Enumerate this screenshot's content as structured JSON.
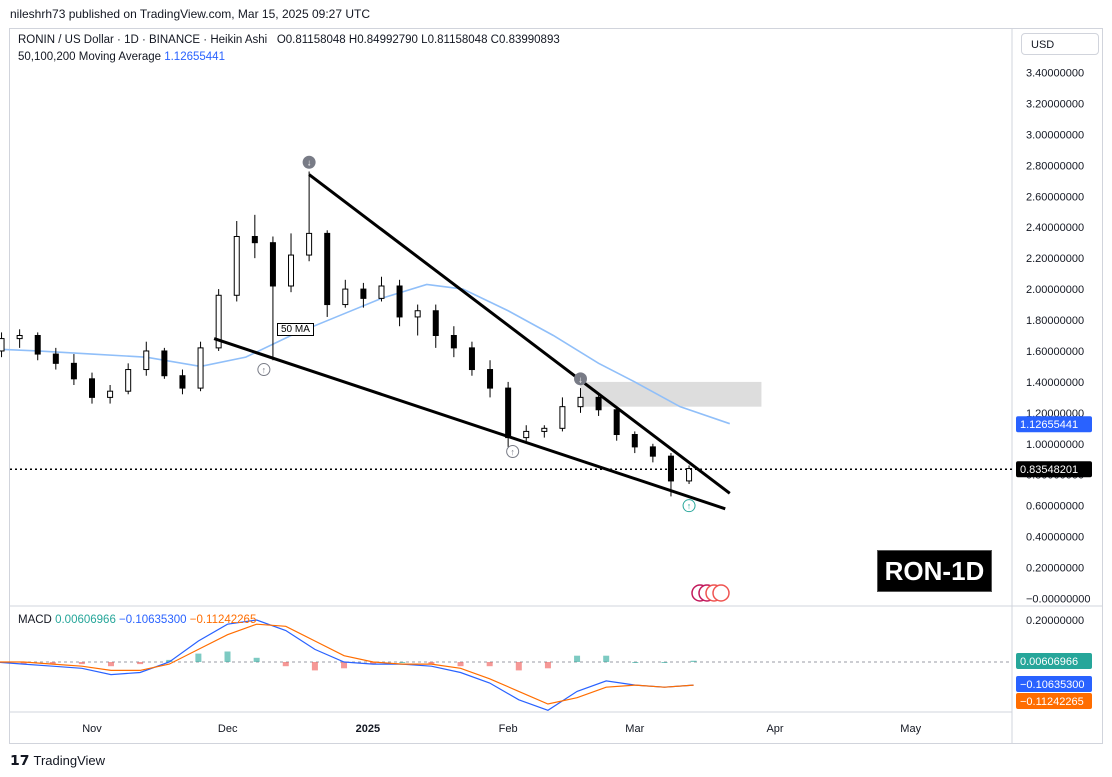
{
  "publisher_line": "nileshrh73 published on TradingView.com, Mar 15, 2025 09:27 UTC",
  "legend": {
    "symbol_line": "RONIN / US Dollar · 1D · BINANCE · Heikin Ashi",
    "open_label": "O",
    "open": "0.81158048",
    "high_label": "H",
    "high": "0.84992790",
    "low_label": "L",
    "low": "0.81158048",
    "close_label": "C",
    "close": "0.83990893",
    "ma_label": "50,100,200 Moving Average",
    "ma_value": "1.12655441"
  },
  "currency_button": "USD",
  "badge_text": "RON-1D",
  "ma_tag": "50 MA",
  "watermark": "TradingView",
  "colors": {
    "up": "#26a69a",
    "down": "#ef5350",
    "candle": "#000000",
    "ma": "#90bff9",
    "macd_line": "#2962ff",
    "signal_line": "#ff6d00",
    "hist_up": "#26a69a",
    "hist_down": "#ef5350",
    "zone": "#d9d9d9",
    "price_tag": "#000000",
    "ma_tag_bg": "#2962ff",
    "macd_tag_bg": "#26a69a"
  },
  "price_tags": {
    "ma": "1.12655441",
    "last": "0.83548201"
  },
  "macd": {
    "label": "MACD",
    "hist": "0.00606966",
    "macd": "−0.10635300",
    "signal": "−0.11242265",
    "axis_labels": [
      "0.20000000"
    ]
  },
  "chart_data": {
    "type": "candlestick",
    "title": "RONIN / US Dollar · 1D · BINANCE · Heikin Ashi",
    "ylim": [
      0,
      3.5
    ],
    "y_ticks": [
      "3.40000000",
      "3.20000000",
      "3.00000000",
      "2.80000000",
      "2.60000000",
      "2.40000000",
      "2.20000000",
      "2.00000000",
      "1.80000000",
      "1.60000000",
      "1.40000000",
      "1.20000000",
      "1.00000000",
      "0.80000000",
      "0.60000000",
      "0.40000000",
      "0.20000000",
      "−0.00000000"
    ],
    "x_ticks": [
      "Nov",
      "Dec",
      "2025",
      "Feb",
      "Mar",
      "Apr",
      "May"
    ],
    "candles": [
      {
        "date": "2024-10-04",
        "o": 1.64,
        "h": 1.7,
        "l": 1.58,
        "c": 1.62
      },
      {
        "date": "2024-10-08",
        "o": 1.62,
        "h": 1.68,
        "l": 1.56,
        "c": 1.6
      },
      {
        "date": "2024-10-12",
        "o": 1.6,
        "h": 1.72,
        "l": 1.56,
        "c": 1.68
      },
      {
        "date": "2024-10-16",
        "o": 1.68,
        "h": 1.74,
        "l": 1.62,
        "c": 1.7
      },
      {
        "date": "2024-10-20",
        "o": 1.7,
        "h": 1.72,
        "l": 1.54,
        "c": 1.58
      },
      {
        "date": "2024-10-24",
        "o": 1.58,
        "h": 1.62,
        "l": 1.48,
        "c": 1.52
      },
      {
        "date": "2024-10-28",
        "o": 1.52,
        "h": 1.58,
        "l": 1.38,
        "c": 1.42
      },
      {
        "date": "2024-11-01",
        "o": 1.42,
        "h": 1.46,
        "l": 1.26,
        "c": 1.3
      },
      {
        "date": "2024-11-05",
        "o": 1.3,
        "h": 1.38,
        "l": 1.26,
        "c": 1.34
      },
      {
        "date": "2024-11-09",
        "o": 1.34,
        "h": 1.52,
        "l": 1.32,
        "c": 1.48
      },
      {
        "date": "2024-11-13",
        "o": 1.48,
        "h": 1.66,
        "l": 1.44,
        "c": 1.6
      },
      {
        "date": "2024-11-17",
        "o": 1.6,
        "h": 1.62,
        "l": 1.42,
        "c": 1.44
      },
      {
        "date": "2024-11-21",
        "o": 1.44,
        "h": 1.48,
        "l": 1.32,
        "c": 1.36
      },
      {
        "date": "2024-11-25",
        "o": 1.36,
        "h": 1.66,
        "l": 1.34,
        "c": 1.62
      },
      {
        "date": "2024-11-29",
        "o": 1.62,
        "h": 2.0,
        "l": 1.6,
        "c": 1.96
      },
      {
        "date": "2024-12-03",
        "o": 1.96,
        "h": 2.44,
        "l": 1.92,
        "c": 2.34
      },
      {
        "date": "2024-12-07",
        "o": 2.34,
        "h": 2.48,
        "l": 2.2,
        "c": 2.3
      },
      {
        "date": "2024-12-11",
        "o": 2.3,
        "h": 2.34,
        "l": 1.54,
        "c": 2.02
      },
      {
        "date": "2024-12-15",
        "o": 2.02,
        "h": 2.36,
        "l": 1.98,
        "c": 2.22
      },
      {
        "date": "2024-12-19",
        "o": 2.22,
        "h": 2.76,
        "l": 2.18,
        "c": 2.36
      },
      {
        "date": "2024-12-23",
        "o": 2.36,
        "h": 2.38,
        "l": 1.82,
        "c": 1.9
      },
      {
        "date": "2024-12-27",
        "o": 1.9,
        "h": 2.06,
        "l": 1.88,
        "c": 2.0
      },
      {
        "date": "2024-12-31",
        "o": 2.0,
        "h": 2.04,
        "l": 1.88,
        "c": 1.94
      },
      {
        "date": "2025-01-04",
        "o": 1.94,
        "h": 2.08,
        "l": 1.92,
        "c": 2.02
      },
      {
        "date": "2025-01-08",
        "o": 2.02,
        "h": 2.06,
        "l": 1.76,
        "c": 1.82
      },
      {
        "date": "2025-01-12",
        "o": 1.82,
        "h": 1.9,
        "l": 1.7,
        "c": 1.86
      },
      {
        "date": "2025-01-16",
        "o": 1.86,
        "h": 1.9,
        "l": 1.62,
        "c": 1.7
      },
      {
        "date": "2025-01-20",
        "o": 1.7,
        "h": 1.76,
        "l": 1.56,
        "c": 1.62
      },
      {
        "date": "2025-01-24",
        "o": 1.62,
        "h": 1.66,
        "l": 1.44,
        "c": 1.48
      },
      {
        "date": "2025-01-28",
        "o": 1.48,
        "h": 1.54,
        "l": 1.3,
        "c": 1.36
      },
      {
        "date": "2025-02-01",
        "o": 1.36,
        "h": 1.4,
        "l": 0.98,
        "c": 1.04
      },
      {
        "date": "2025-02-05",
        "o": 1.04,
        "h": 1.12,
        "l": 1.0,
        "c": 1.08
      },
      {
        "date": "2025-02-09",
        "o": 1.08,
        "h": 1.12,
        "l": 1.04,
        "c": 1.1
      },
      {
        "date": "2025-02-13",
        "o": 1.1,
        "h": 1.3,
        "l": 1.08,
        "c": 1.24
      },
      {
        "date": "2025-02-17",
        "o": 1.24,
        "h": 1.36,
        "l": 1.2,
        "c": 1.3
      },
      {
        "date": "2025-02-21",
        "o": 1.3,
        "h": 1.32,
        "l": 1.18,
        "c": 1.22
      },
      {
        "date": "2025-02-25",
        "o": 1.22,
        "h": 1.24,
        "l": 1.02,
        "c": 1.06
      },
      {
        "date": "2025-03-01",
        "o": 1.06,
        "h": 1.08,
        "l": 0.94,
        "c": 0.98
      },
      {
        "date": "2025-03-05",
        "o": 0.98,
        "h": 1.0,
        "l": 0.88,
        "c": 0.92
      },
      {
        "date": "2025-03-09",
        "o": 0.92,
        "h": 0.94,
        "l": 0.66,
        "c": 0.76
      },
      {
        "date": "2025-03-13",
        "o": 0.76,
        "h": 0.86,
        "l": 0.74,
        "c": 0.84
      }
    ],
    "ma50": [
      {
        "date": "2024-10-04",
        "v": 1.62
      },
      {
        "date": "2024-10-20",
        "v": 1.6
      },
      {
        "date": "2024-11-01",
        "v": 1.58
      },
      {
        "date": "2024-11-13",
        "v": 1.56
      },
      {
        "date": "2024-11-25",
        "v": 1.5
      },
      {
        "date": "2024-12-05",
        "v": 1.56
      },
      {
        "date": "2024-12-15",
        "v": 1.7
      },
      {
        "date": "2024-12-25",
        "v": 1.82
      },
      {
        "date": "2025-01-04",
        "v": 1.94
      },
      {
        "date": "2025-01-14",
        "v": 2.03
      },
      {
        "date": "2025-01-22",
        "v": 2.0
      },
      {
        "date": "2025-02-01",
        "v": 1.86
      },
      {
        "date": "2025-02-11",
        "v": 1.7
      },
      {
        "date": "2025-02-21",
        "v": 1.52
      },
      {
        "date": "2025-03-01",
        "v": 1.4
      },
      {
        "date": "2025-03-11",
        "v": 1.24
      },
      {
        "date": "2025-03-22",
        "v": 1.13
      }
    ],
    "trendlines": [
      {
        "from": {
          "date": "2024-12-19",
          "v": 2.74
        },
        "to": {
          "date": "2025-03-22",
          "v": 0.68
        }
      },
      {
        "from": {
          "date": "2024-11-28",
          "v": 1.68
        },
        "to": {
          "date": "2025-03-21",
          "v": 0.58
        }
      }
    ],
    "zone": {
      "from": "2025-02-17",
      "to": "2025-03-29",
      "low": 1.24,
      "high": 1.4
    },
    "markers": [
      {
        "type": "down",
        "date": "2024-12-19",
        "v": 2.82
      },
      {
        "type": "up",
        "date": "2024-12-09",
        "v": 1.48
      },
      {
        "type": "up",
        "date": "2025-02-02",
        "v": 0.95
      },
      {
        "type": "down",
        "date": "2025-02-17",
        "v": 1.42
      },
      {
        "type": "up",
        "date": "2025-03-13",
        "v": 0.6
      }
    ],
    "macd_series": {
      "macd": [
        0.0,
        0.0,
        -0.01,
        -0.02,
        -0.03,
        -0.06,
        -0.05,
        0.0,
        0.1,
        0.18,
        0.2,
        0.15,
        0.06,
        0.0,
        -0.01,
        -0.01,
        -0.02,
        -0.05,
        -0.1,
        -0.18,
        -0.23,
        -0.14,
        -0.09,
        -0.11,
        -0.12,
        -0.11
      ],
      "signal": [
        0.0,
        0.0,
        0.0,
        -0.01,
        -0.02,
        -0.04,
        -0.04,
        -0.01,
        0.06,
        0.13,
        0.18,
        0.17,
        0.1,
        0.03,
        0.0,
        -0.01,
        -0.01,
        -0.03,
        -0.08,
        -0.14,
        -0.2,
        -0.17,
        -0.12,
        -0.11,
        -0.12,
        -0.11
      ],
      "hist": [
        0.0,
        0.0,
        -0.01,
        -0.01,
        -0.01,
        -0.02,
        -0.01,
        0.01,
        0.04,
        0.05,
        0.02,
        -0.02,
        -0.04,
        -0.03,
        -0.01,
        0.0,
        -0.01,
        -0.02,
        -0.02,
        -0.04,
        -0.03,
        0.03,
        0.03,
        0.0,
        0.0,
        0.006
      ]
    }
  }
}
